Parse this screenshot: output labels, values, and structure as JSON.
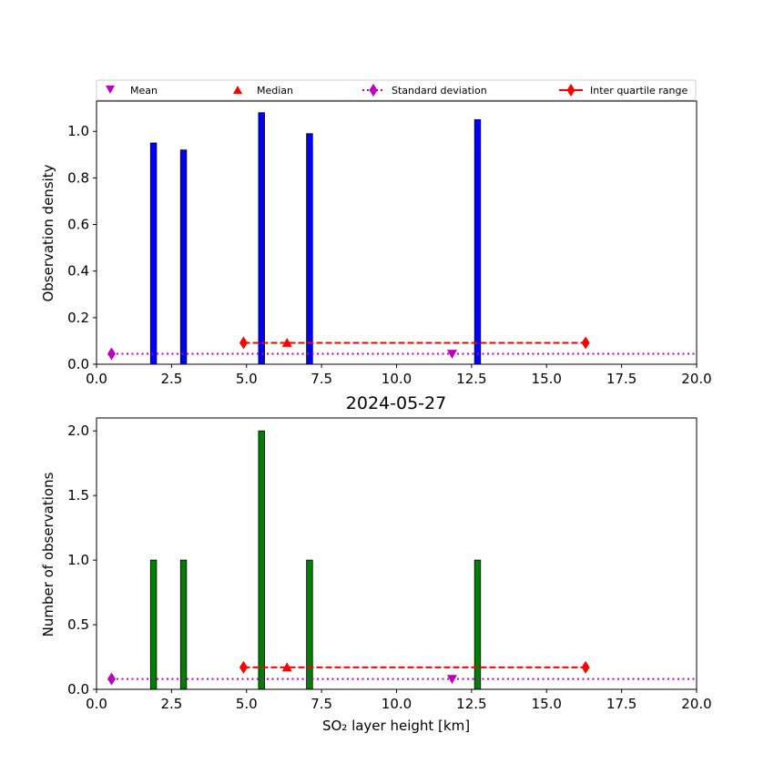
{
  "chart_data": [
    {
      "type": "bar",
      "title": "",
      "xlabel": "",
      "ylabel": "Observation density",
      "xlim": [
        0,
        20
      ],
      "ylim": [
        0,
        1.13
      ],
      "xticks": [
        "0.0",
        "2.5",
        "5.0",
        "7.5",
        "10.0",
        "12.5",
        "15.0",
        "17.5",
        "20.0"
      ],
      "yticks": [
        "0.0",
        "0.2",
        "0.4",
        "0.6",
        "0.8",
        "1.0"
      ],
      "bar_color": "#0000ff",
      "bar_width": 0.2,
      "bars": [
        {
          "x": 1.9,
          "value": 0.95
        },
        {
          "x": 2.9,
          "value": 0.92
        },
        {
          "x": 5.5,
          "value": 1.08
        },
        {
          "x": 7.1,
          "value": 0.99
        },
        {
          "x": 12.7,
          "value": 1.05
        }
      ],
      "stats": {
        "mean": {
          "x": 11.85,
          "y": 0.045
        },
        "median": {
          "x": 6.35,
          "y": 0.092
        },
        "std_dev": {
          "marker_x": 0.5,
          "y": 0.045,
          "x_range": [
            0.5,
            20
          ]
        },
        "iqr": {
          "x_range": [
            4.9,
            16.3
          ],
          "y": 0.092
        }
      },
      "legend": {
        "position": "top",
        "entries": [
          "Mean",
          "Median",
          "Standard deviation",
          "Inter quartile range"
        ]
      },
      "grid": false
    },
    {
      "type": "bar",
      "title": "2024-05-27",
      "xlabel": "SO₂ layer height [km]",
      "ylabel": "Number of observations",
      "xlim": [
        0,
        20
      ],
      "ylim": [
        0,
        2.1
      ],
      "xticks": [
        "0.0",
        "2.5",
        "5.0",
        "7.5",
        "10.0",
        "12.5",
        "15.0",
        "17.5",
        "20.0"
      ],
      "yticks": [
        "0.0",
        "0.5",
        "1.0",
        "1.5",
        "2.0"
      ],
      "bar_color": "#008000",
      "bar_width": 0.2,
      "bars": [
        {
          "x": 1.9,
          "value": 1
        },
        {
          "x": 2.9,
          "value": 1
        },
        {
          "x": 5.5,
          "value": 2
        },
        {
          "x": 7.1,
          "value": 1
        },
        {
          "x": 12.7,
          "value": 1
        }
      ],
      "stats": {
        "mean": {
          "x": 11.85,
          "y": 0.08
        },
        "median": {
          "x": 6.35,
          "y": 0.17
        },
        "std_dev": {
          "marker_x": 0.5,
          "y": 0.08,
          "x_range": [
            0.5,
            20
          ]
        },
        "iqr": {
          "x_range": [
            4.9,
            16.3
          ],
          "y": 0.17
        }
      },
      "grid": false
    }
  ],
  "colors": {
    "mean": "#bf00bf",
    "std_dev": "#bf00bf",
    "median": "#ff0000",
    "iqr": "#ff0000"
  }
}
